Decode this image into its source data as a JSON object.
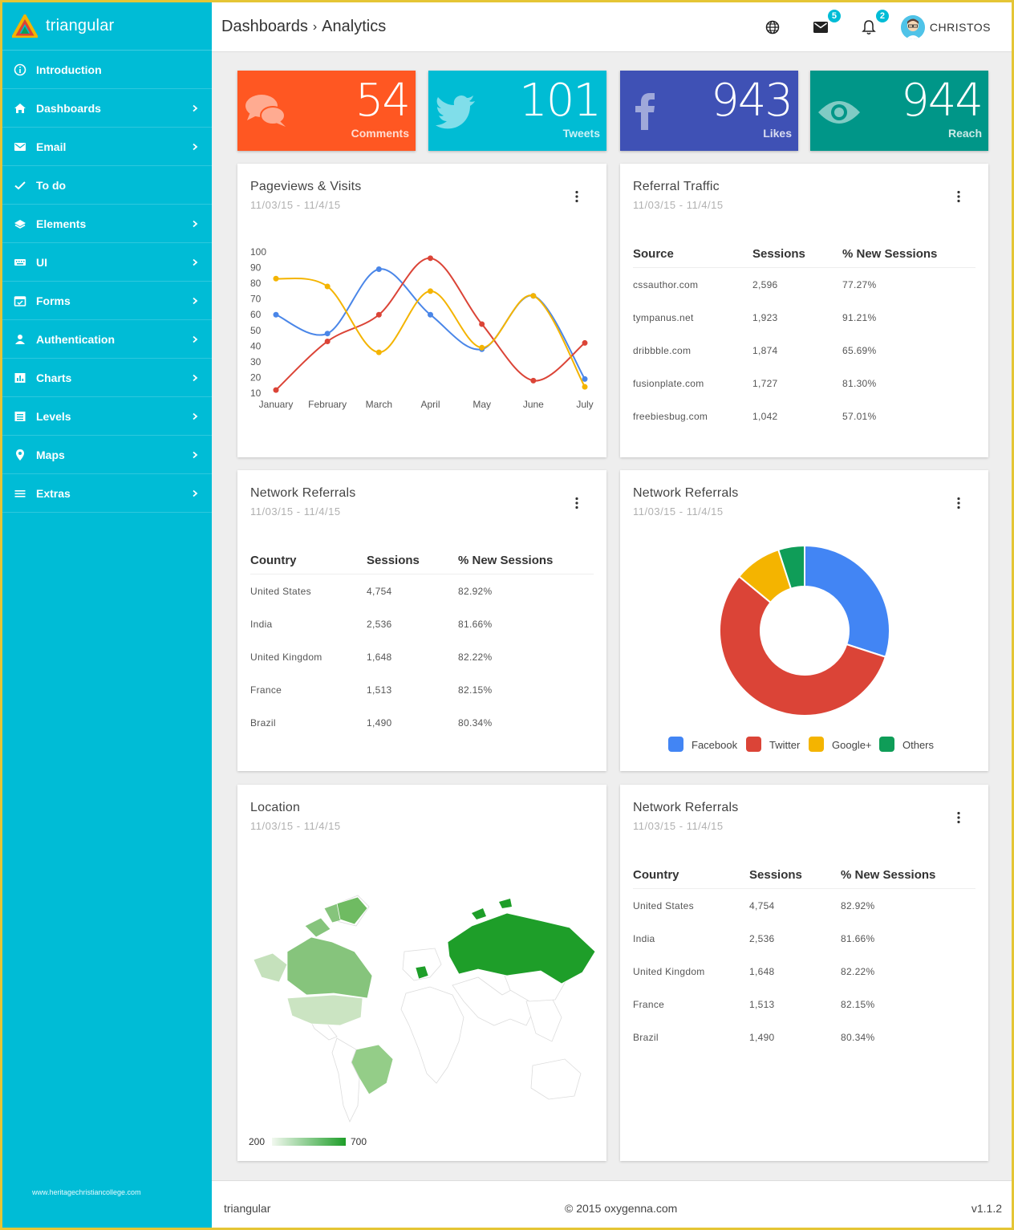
{
  "brand": {
    "name": "triangular"
  },
  "sidebar": {
    "items": [
      {
        "label": "Introduction",
        "icon": "info-icon",
        "has_children": false
      },
      {
        "label": "Dashboards",
        "icon": "home-icon",
        "has_children": true
      },
      {
        "label": "Email",
        "icon": "mail-icon",
        "has_children": true
      },
      {
        "label": "To do",
        "icon": "check-icon",
        "has_children": false
      },
      {
        "label": "Elements",
        "icon": "layers-icon",
        "has_children": true
      },
      {
        "label": "UI",
        "icon": "keyboard-icon",
        "has_children": true
      },
      {
        "label": "Forms",
        "icon": "calendar-check-icon",
        "has_children": true
      },
      {
        "label": "Authentication",
        "icon": "person-icon",
        "has_children": true
      },
      {
        "label": "Charts",
        "icon": "bar-chart-icon",
        "has_children": true
      },
      {
        "label": "Levels",
        "icon": "list-box-icon",
        "has_children": true
      },
      {
        "label": "Maps",
        "icon": "map-pin-icon",
        "has_children": true
      },
      {
        "label": "Extras",
        "icon": "menu-lines-icon",
        "has_children": true
      }
    ],
    "footer_text": "www.heritagechristiancollege.com"
  },
  "header": {
    "breadcrumb": [
      "Dashboards",
      "Analytics"
    ],
    "breadcrumb_sep": "›",
    "mail_badge": "5",
    "notif_badge": "2",
    "user_name": "CHRISTOS"
  },
  "tiles": [
    {
      "value": "54",
      "label": "Comments",
      "color": "#ff5722",
      "icon": "chat-bubbles-icon"
    },
    {
      "value": "101",
      "label": "Tweets",
      "color": "#00bcd4",
      "icon": "twitter-icon"
    },
    {
      "value": "943",
      "label": "Likes",
      "color": "#3f51b5",
      "icon": "facebook-icon"
    },
    {
      "value": "944",
      "label": "Reach",
      "color": "#009688",
      "icon": "eye-icon"
    }
  ],
  "pageviews": {
    "title": "Pageviews & Visits",
    "range": "11/03/15 - 11/4/15"
  },
  "referral": {
    "title": "Referral Traffic",
    "range": "11/03/15 - 11/4/15",
    "headers": [
      "Source",
      "Sessions",
      "% New Sessions"
    ],
    "rows": [
      [
        "cssauthor.com",
        "2,596",
        "77.27%"
      ],
      [
        "tympanus.net",
        "1,923",
        "91.21%"
      ],
      [
        "dribbble.com",
        "1,874",
        "65.69%"
      ],
      [
        "fusionplate.com",
        "1,727",
        "81.30%"
      ],
      [
        "freebiesbug.com",
        "1,042",
        "57.01%"
      ]
    ]
  },
  "network1": {
    "title": "Network Referrals",
    "range": "11/03/15 - 11/4/15",
    "headers": [
      "Country",
      "Sessions",
      "% New Sessions"
    ],
    "rows": [
      [
        "United States",
        "4,754",
        "82.92%"
      ],
      [
        "India",
        "2,536",
        "81.66%"
      ],
      [
        "United Kingdom",
        "1,648",
        "82.22%"
      ],
      [
        "France",
        "1,513",
        "82.15%"
      ],
      [
        "Brazil",
        "1,490",
        "80.34%"
      ]
    ]
  },
  "network_pie": {
    "title": "Network Referrals",
    "range": "11/03/15 - 11/4/15"
  },
  "location": {
    "title": "Location",
    "range": "11/03/15 - 11/4/15",
    "scale_min": "200",
    "scale_max": "700"
  },
  "network2": {
    "title": "Network Referrals",
    "range": "11/03/15 - 11/4/15",
    "headers": [
      "Country",
      "Sessions",
      "% New Sessions"
    ],
    "rows": [
      [
        "United States",
        "4,754",
        "82.92%"
      ],
      [
        "India",
        "2,536",
        "81.66%"
      ],
      [
        "United Kingdom",
        "1,648",
        "82.22%"
      ],
      [
        "France",
        "1,513",
        "82.15%"
      ],
      [
        "Brazil",
        "1,490",
        "80.34%"
      ]
    ]
  },
  "footer": {
    "left": "triangular",
    "center": "© 2015 oxygenna.com",
    "right": "v1.1.2"
  },
  "chart_data": [
    {
      "type": "line",
      "title": "Pageviews & Visits",
      "categories": [
        "January",
        "February",
        "March",
        "April",
        "May",
        "June",
        "July"
      ],
      "y_ticks": [
        "100",
        "90",
        "80",
        "70",
        "60",
        "50",
        "40",
        "30",
        "20",
        "10"
      ],
      "ylim": [
        10,
        100
      ],
      "series": [
        {
          "color": "#4a86e8",
          "values": [
            60,
            48,
            89,
            60,
            38,
            72,
            19
          ]
        },
        {
          "color": "#db4437",
          "values": [
            12,
            43,
            60,
            96,
            54,
            18,
            42
          ]
        },
        {
          "color": "#f4b400",
          "values": [
            83,
            78,
            36,
            75,
            39,
            72,
            14
          ]
        }
      ]
    },
    {
      "type": "pie",
      "title": "Network Referrals",
      "donut": true,
      "slices": [
        {
          "name": "Facebook",
          "value": 30,
          "color": "#4285f4"
        },
        {
          "name": "Twitter",
          "value": 56,
          "color": "#db4437"
        },
        {
          "name": "Google+",
          "value": 9,
          "color": "#f4b400"
        },
        {
          "name": "Others",
          "value": 5,
          "color": "#0f9d58"
        }
      ],
      "legend": "bottom"
    }
  ]
}
